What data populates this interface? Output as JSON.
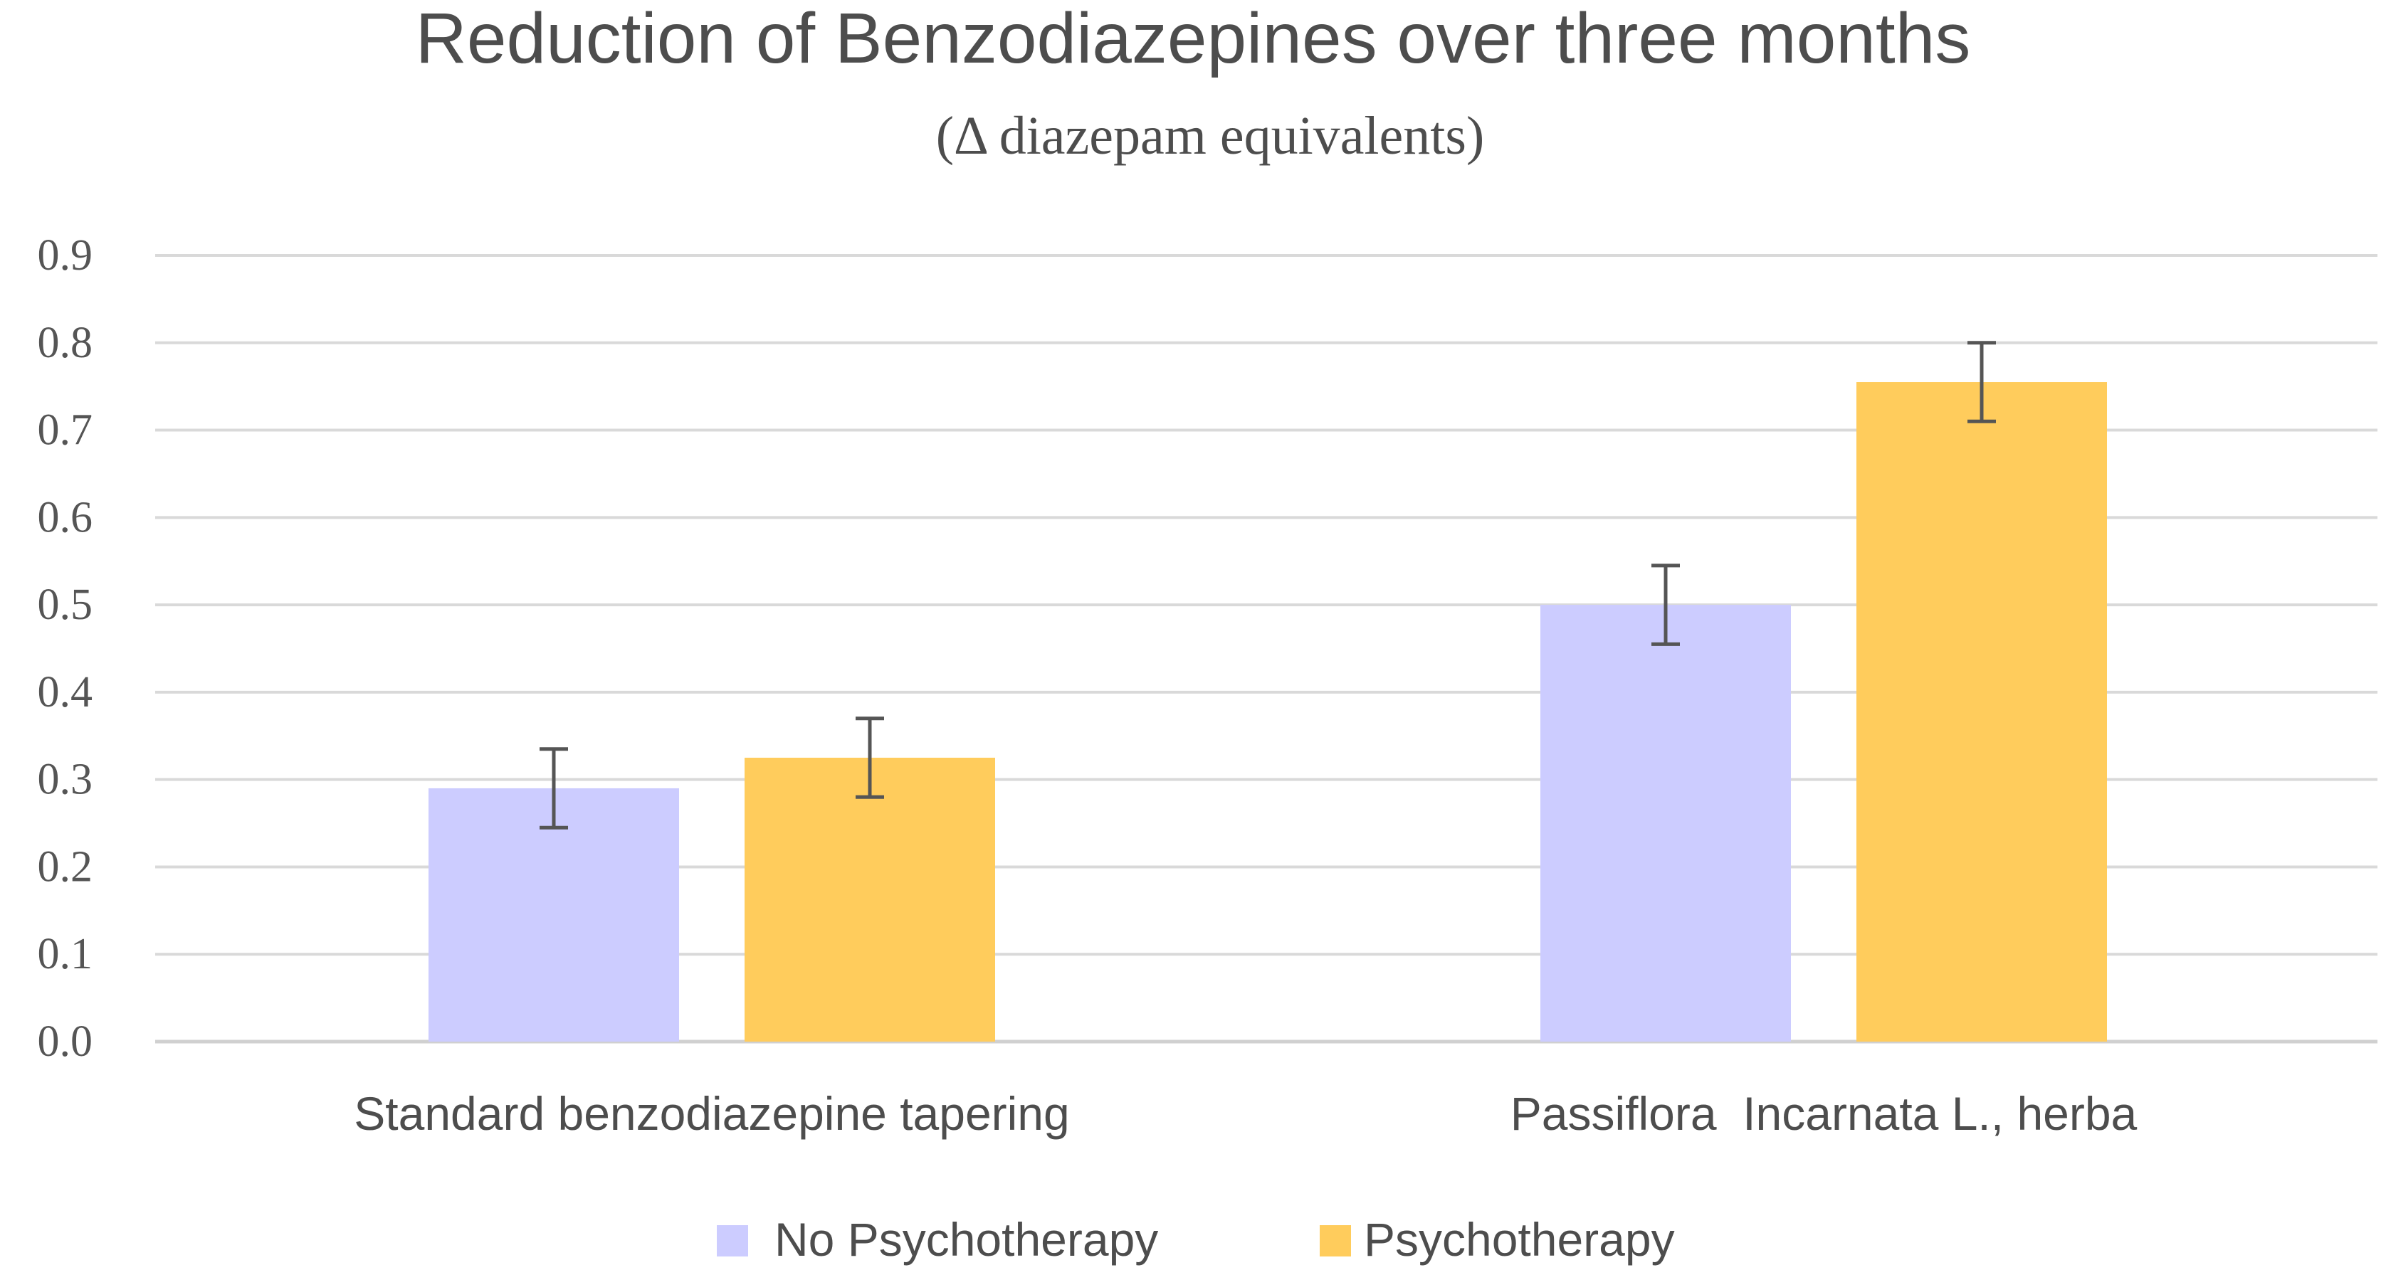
{
  "chart_data": {
    "type": "bar",
    "title": "Reduction of Benzodiazepines over three months",
    "subtitle": "(Δ diazepam equivalents)",
    "xlabel": "",
    "ylabel": "",
    "categories": [
      "Standard benzodiazepine tapering",
      "Passiflora  Incarnata L., herba"
    ],
    "series": [
      {
        "name": "No Psychotherapy",
        "color": "#ccccff",
        "values": [
          0.29,
          0.5
        ],
        "error": [
          0.045,
          0.045
        ]
      },
      {
        "name": "Psychotherapy",
        "color": "#ffcc5c",
        "values": [
          0.325,
          0.755
        ],
        "error": [
          0.045,
          0.045
        ]
      }
    ],
    "ylim": [
      0,
      0.9
    ],
    "yticks": [
      "0.0",
      "0.1",
      "0.2",
      "0.3",
      "0.4",
      "0.5",
      "0.6",
      "0.7",
      "0.8",
      "0.9"
    ],
    "grid": true,
    "legend_position": "bottom"
  }
}
